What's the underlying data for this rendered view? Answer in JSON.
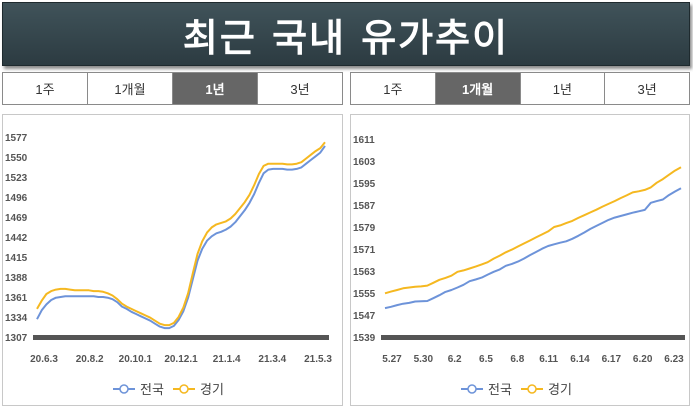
{
  "header": {
    "title": "최근 국내 유가추이"
  },
  "left": {
    "tabs": [
      {
        "label": "1주",
        "active": false
      },
      {
        "label": "1개월",
        "active": false
      },
      {
        "label": "1년",
        "active": true
      },
      {
        "label": "3년",
        "active": false
      }
    ]
  },
  "right": {
    "tabs": [
      {
        "label": "1주",
        "active": false
      },
      {
        "label": "1개월",
        "active": true
      },
      {
        "label": "1년",
        "active": false
      },
      {
        "label": "3년",
        "active": false
      }
    ]
  },
  "colors": {
    "national": "#6d93d9",
    "gyeonggi": "#f5b820",
    "axis_bar": "#555555",
    "active_tab": "#666666"
  },
  "chart_data": [
    {
      "type": "line",
      "title": "",
      "ylim": [
        1307,
        1577
      ],
      "yticks": [
        1577,
        1550,
        1523,
        1496,
        1469,
        1442,
        1415,
        1388,
        1361,
        1334,
        1307
      ],
      "x_labels": [
        "20.6.3",
        "20.8.2",
        "20.10.1",
        "20.12.1",
        "21.1.4",
        "21.3.4",
        "21.5.3"
      ],
      "legend_position": "bottom",
      "series": [
        {
          "name": "전국",
          "values": [
            1331,
            1343,
            1351,
            1357,
            1360,
            1361,
            1362,
            1362,
            1362,
            1362,
            1362,
            1362,
            1362,
            1361,
            1361,
            1360,
            1358,
            1354,
            1348,
            1345,
            1341,
            1338,
            1335,
            1332,
            1329,
            1325,
            1321,
            1319,
            1319,
            1322,
            1330,
            1342,
            1360,
            1385,
            1410,
            1426,
            1437,
            1443,
            1447,
            1449,
            1452,
            1456,
            1462,
            1470,
            1478,
            1488,
            1500,
            1515,
            1528,
            1533,
            1534,
            1534,
            1534,
            1533,
            1533,
            1534,
            1536,
            1541,
            1546,
            1551,
            1556,
            1565
          ]
        },
        {
          "name": "경기",
          "values": [
            1345,
            1356,
            1365,
            1369,
            1371,
            1372,
            1372,
            1371,
            1370,
            1370,
            1370,
            1370,
            1369,
            1369,
            1368,
            1366,
            1363,
            1358,
            1352,
            1348,
            1345,
            1342,
            1339,
            1336,
            1333,
            1329,
            1325,
            1323,
            1323,
            1326,
            1334,
            1347,
            1366,
            1393,
            1419,
            1436,
            1448,
            1455,
            1459,
            1461,
            1463,
            1467,
            1473,
            1481,
            1489,
            1499,
            1512,
            1527,
            1538,
            1541,
            1541,
            1541,
            1541,
            1540,
            1540,
            1541,
            1543,
            1548,
            1553,
            1558,
            1562,
            1570
          ]
        }
      ]
    },
    {
      "type": "line",
      "title": "",
      "ylim": [
        1539,
        1611
      ],
      "yticks": [
        1611,
        1603,
        1595,
        1587,
        1579,
        1571,
        1563,
        1555,
        1547,
        1539
      ],
      "x_labels": [
        "5.27",
        "5.30",
        "6.2",
        "6.5",
        "6.8",
        "6.11",
        "6.14",
        "6.17",
        "6.20",
        "6.23"
      ],
      "legend_position": "bottom",
      "series": [
        {
          "name": "전국",
          "values": [
            1549.5,
            1550.0,
            1550.6,
            1551.1,
            1551.4,
            1551.9,
            1552.0,
            1552.1,
            1553.1,
            1554.2,
            1555.4,
            1556.1,
            1557.0,
            1558.0,
            1559.3,
            1559.9,
            1560.6,
            1561.7,
            1562.7,
            1563.6,
            1564.9,
            1565.6,
            1566.4,
            1567.5,
            1568.8,
            1569.9,
            1571.1,
            1572.1,
            1572.7,
            1573.3,
            1573.8,
            1574.7,
            1575.8,
            1577.0,
            1578.3,
            1579.4,
            1580.5,
            1581.6,
            1582.4,
            1583.0,
            1583.6,
            1584.2,
            1584.7,
            1585.2,
            1587.8,
            1588.4,
            1589.0,
            1590.6,
            1591.9,
            1593.1
          ]
        },
        {
          "name": "경기",
          "values": [
            1554.9,
            1555.5,
            1556.1,
            1556.7,
            1557.0,
            1557.3,
            1557.4,
            1557.7,
            1558.7,
            1559.8,
            1560.5,
            1561.3,
            1562.7,
            1563.2,
            1563.9,
            1564.6,
            1565.4,
            1566.2,
            1567.5,
            1568.6,
            1569.8,
            1570.8,
            1571.9,
            1573.0,
            1574.1,
            1575.2,
            1576.3,
            1577.4,
            1579.0,
            1579.6,
            1580.4,
            1581.2,
            1582.3,
            1583.3,
            1584.3,
            1585.3,
            1586.4,
            1587.4,
            1588.4,
            1589.5,
            1590.5,
            1591.6,
            1592.0,
            1592.5,
            1593.4,
            1595.1,
            1596.4,
            1598.0,
            1599.5,
            1600.7
          ]
        }
      ]
    }
  ]
}
